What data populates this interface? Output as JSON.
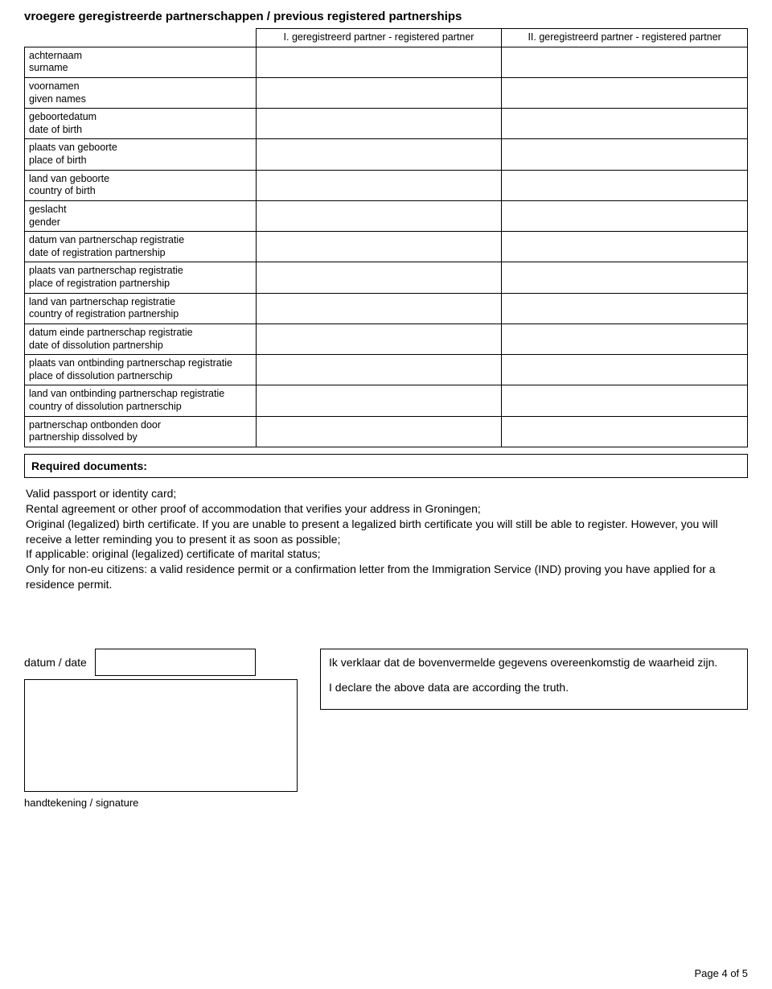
{
  "title": "vroegere geregistreerde partnerschappen / previous registered partnerships",
  "columns": {
    "partner1": "I. geregistreerd partner - registered partner",
    "partner2": "II. geregistreerd partner - registered partner"
  },
  "rows": [
    {
      "nl": "achternaam",
      "en": "surname"
    },
    {
      "nl": "voornamen",
      "en": "given names"
    },
    {
      "nl": "geboortedatum",
      "en": "date of birth"
    },
    {
      "nl": "plaats van geboorte",
      "en": "place of birth"
    },
    {
      "nl": "land van geboorte",
      "en": "country of birth"
    },
    {
      "nl": "geslacht",
      "en": "gender"
    },
    {
      "nl": "datum van partnerschap registratie",
      "en": "date of registration partnership"
    },
    {
      "nl": "plaats van partnerschap registratie",
      "en": "place of registration partnership"
    },
    {
      "nl": "land van partnerschap registratie",
      "en": "country of registration partnership"
    },
    {
      "nl": "datum einde partnerschap registratie",
      "en": "date of dissolution partnership"
    },
    {
      "nl": "plaats van ontbinding partnerschap registratie",
      "en": "place of dissolution partnerschip"
    },
    {
      "nl": "land van ontbinding partnerschap registratie",
      "en": "country of dissolution partnerschip"
    },
    {
      "nl": "partnerschap ontbonden door",
      "en": "partnership dissolved by"
    }
  ],
  "required": {
    "heading": "Required documents:",
    "body": "Valid passport or identity card;\nRental agreement or other proof of accommodation that verifies your address in Groningen;\nOriginal (legalized) birth certificate. If you are unable to present a legalized birth certificate you will still be able to register. However, you will receive a letter reminding you to present it as soon as possible;\nIf applicable: original (legalized) certificate of marital status;\nOnly for non-eu citizens: a valid residence permit or a confirmation letter from the Immigration Service (IND) proving you have applied for a residence permit."
  },
  "date_label": "datum / date",
  "signature_label": "handtekening / signature",
  "declaration": {
    "nl": "Ik verklaar dat de bovenvermelde gegevens overeenkomstig de waarheid zijn.",
    "en": "I declare the above data are according the truth."
  },
  "page": "Page 4 of 5"
}
